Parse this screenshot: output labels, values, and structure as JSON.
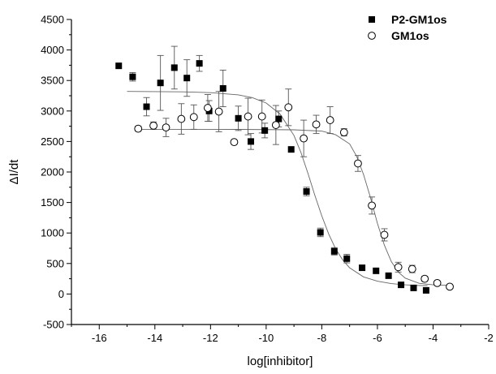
{
  "chart_data": {
    "type": "scatter",
    "title": "",
    "xlabel": "log[inhibitor]",
    "ylabel": "ΔI/dt",
    "xlim": [
      -17,
      -2
    ],
    "ylim": [
      -500,
      4500
    ],
    "xticks": [
      -16,
      -14,
      -12,
      -10,
      -8,
      -6,
      -4,
      -2
    ],
    "yticks": [
      -500,
      0,
      500,
      1000,
      1500,
      2000,
      2500,
      3000,
      3500,
      4000,
      4500
    ],
    "grid": false,
    "legend_position": "top-right",
    "series": [
      {
        "name": "P2-GM1os",
        "marker": "filled-square",
        "color": "#000000",
        "points": [
          {
            "x": -15.3,
            "y": 3740,
            "err": 0
          },
          {
            "x": -14.8,
            "y": 3560,
            "err": 70
          },
          {
            "x": -14.3,
            "y": 3070,
            "err": 150
          },
          {
            "x": -13.8,
            "y": 3460,
            "err": 450
          },
          {
            "x": -13.3,
            "y": 3710,
            "err": 350
          },
          {
            "x": -12.85,
            "y": 3540,
            "err": 300
          },
          {
            "x": -12.4,
            "y": 3780,
            "err": 130
          },
          {
            "x": -12.05,
            "y": 3000,
            "err": 170
          },
          {
            "x": -11.55,
            "y": 3370,
            "err": 300
          },
          {
            "x": -11.0,
            "y": 2880,
            "err": 200
          },
          {
            "x": -10.55,
            "y": 2500,
            "err": 130
          },
          {
            "x": -10.05,
            "y": 2680,
            "err": 120
          },
          {
            "x": -9.55,
            "y": 2870,
            "err": 130
          },
          {
            "x": -9.1,
            "y": 2370,
            "err": 0
          },
          {
            "x": -8.55,
            "y": 1680,
            "err": 70
          },
          {
            "x": -8.05,
            "y": 1010,
            "err": 70
          },
          {
            "x": -7.55,
            "y": 700,
            "err": 60
          },
          {
            "x": -7.1,
            "y": 580,
            "err": 70
          },
          {
            "x": -6.55,
            "y": 430,
            "err": 0
          },
          {
            "x": -6.05,
            "y": 380,
            "err": 0
          },
          {
            "x": -5.6,
            "y": 300,
            "err": 0
          },
          {
            "x": -5.15,
            "y": 150,
            "err": 0
          },
          {
            "x": -4.7,
            "y": 100,
            "err": 0
          },
          {
            "x": -4.25,
            "y": 60,
            "err": 0
          }
        ],
        "fit": [
          {
            "x": -15.0,
            "y": 3320
          },
          {
            "x": -14.0,
            "y": 3318
          },
          {
            "x": -13.0,
            "y": 3314
          },
          {
            "x": -12.0,
            "y": 3300
          },
          {
            "x": -11.0,
            "y": 3265
          },
          {
            "x": -10.5,
            "y": 3220
          },
          {
            "x": -10.0,
            "y": 3130
          },
          {
            "x": -9.5,
            "y": 2950
          },
          {
            "x": -9.0,
            "y": 2600
          },
          {
            "x": -8.75,
            "y": 2320
          },
          {
            "x": -8.5,
            "y": 1980
          },
          {
            "x": -8.25,
            "y": 1620
          },
          {
            "x": -8.0,
            "y": 1280
          },
          {
            "x": -7.75,
            "y": 980
          },
          {
            "x": -7.5,
            "y": 740
          },
          {
            "x": -7.25,
            "y": 560
          },
          {
            "x": -7.0,
            "y": 430
          },
          {
            "x": -6.5,
            "y": 280
          },
          {
            "x": -6.0,
            "y": 210
          },
          {
            "x": -5.5,
            "y": 170
          },
          {
            "x": -5.0,
            "y": 150
          },
          {
            "x": -4.5,
            "y": 140
          },
          {
            "x": -4.2,
            "y": 138
          }
        ]
      },
      {
        "name": "GM1os",
        "marker": "open-circle",
        "color": "#000000",
        "points": [
          {
            "x": -14.6,
            "y": 2710,
            "err": 40
          },
          {
            "x": -14.05,
            "y": 2760,
            "err": 60
          },
          {
            "x": -13.6,
            "y": 2730,
            "err": 150
          },
          {
            "x": -13.05,
            "y": 2870,
            "err": 250
          },
          {
            "x": -12.6,
            "y": 2900,
            "err": 200
          },
          {
            "x": -12.1,
            "y": 3050,
            "err": 220
          },
          {
            "x": -11.7,
            "y": 2990,
            "err": 330
          },
          {
            "x": -11.15,
            "y": 2490,
            "err": 0
          },
          {
            "x": -10.65,
            "y": 2910,
            "err": 300
          },
          {
            "x": -10.15,
            "y": 2910,
            "err": 270
          },
          {
            "x": -9.65,
            "y": 2770,
            "err": 320
          },
          {
            "x": -9.2,
            "y": 3060,
            "err": 300
          },
          {
            "x": -8.65,
            "y": 2550,
            "err": 300
          },
          {
            "x": -8.2,
            "y": 2780,
            "err": 150
          },
          {
            "x": -7.7,
            "y": 2850,
            "err": 220
          },
          {
            "x": -7.2,
            "y": 2650,
            "err": 60
          },
          {
            "x": -6.7,
            "y": 2140,
            "err": 130
          },
          {
            "x": -6.2,
            "y": 1450,
            "err": 140
          },
          {
            "x": -5.75,
            "y": 970,
            "err": 100
          },
          {
            "x": -5.25,
            "y": 440,
            "err": 80
          },
          {
            "x": -4.75,
            "y": 410,
            "err": 60
          },
          {
            "x": -4.3,
            "y": 250,
            "err": 40
          },
          {
            "x": -3.85,
            "y": 180,
            "err": 30
          },
          {
            "x": -3.4,
            "y": 120,
            "err": 30
          }
        ],
        "fit": [
          {
            "x": -14.6,
            "y": 2700
          },
          {
            "x": -13.0,
            "y": 2700
          },
          {
            "x": -11.0,
            "y": 2698
          },
          {
            "x": -9.0,
            "y": 2692
          },
          {
            "x": -8.0,
            "y": 2670
          },
          {
            "x": -7.5,
            "y": 2610
          },
          {
            "x": -7.0,
            "y": 2460
          },
          {
            "x": -6.75,
            "y": 2260
          },
          {
            "x": -6.5,
            "y": 1960
          },
          {
            "x": -6.25,
            "y": 1580
          },
          {
            "x": -6.0,
            "y": 1160
          },
          {
            "x": -5.75,
            "y": 800
          },
          {
            "x": -5.5,
            "y": 530
          },
          {
            "x": -5.25,
            "y": 360
          },
          {
            "x": -5.0,
            "y": 260
          },
          {
            "x": -4.5,
            "y": 175
          },
          {
            "x": -4.0,
            "y": 150
          },
          {
            "x": -3.4,
            "y": 142
          }
        ]
      }
    ]
  }
}
